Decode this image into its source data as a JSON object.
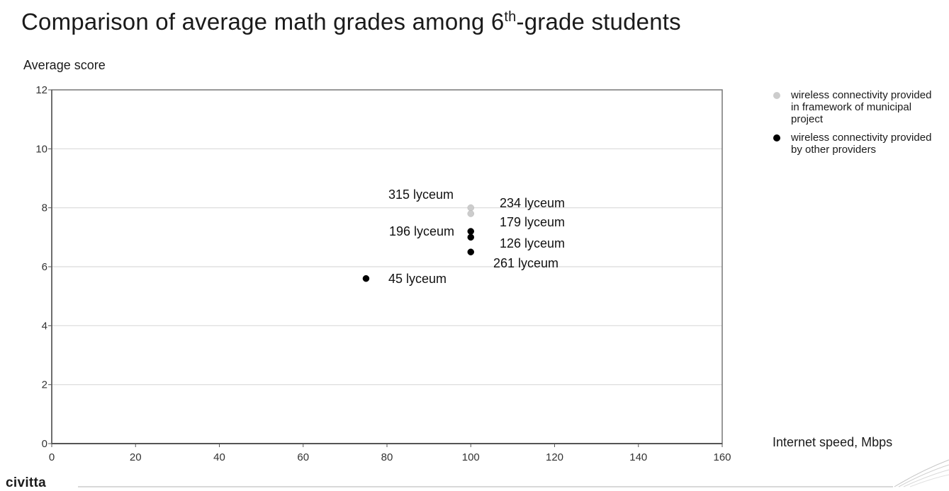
{
  "header": {
    "title_main": "Comparison of average math grades among 6",
    "title_sup": "th",
    "title_rest": "-grade students"
  },
  "brand": "civitta",
  "chart_data": {
    "type": "scatter",
    "title": "Comparison of average math grades among 6th-grade students",
    "xlabel": "Internet speed, Mbps",
    "ylabel": "Average score",
    "xlim": [
      0,
      160
    ],
    "ylim": [
      0,
      12
    ],
    "x_ticks": [
      "0",
      "20",
      "40",
      "60",
      "80",
      "100",
      "120",
      "140",
      "160"
    ],
    "y_ticks": [
      "0",
      "2",
      "4",
      "6",
      "8",
      "10",
      "12"
    ],
    "grid": "horizontal",
    "legend_position": "right",
    "series": [
      {
        "name": "wireless connectivity provided in framework of municipal project",
        "color": "#cccccc",
        "points": [
          {
            "x": 100,
            "y": 8.0
          },
          {
            "x": 100,
            "y": 7.8
          }
        ]
      },
      {
        "name": "wireless connectivity provided by other providers",
        "color": "#000000",
        "points": [
          {
            "x": 100,
            "y": 7.2
          },
          {
            "x": 100,
            "y": 7.0
          },
          {
            "x": 100,
            "y": 6.5
          },
          {
            "x": 75,
            "y": 5.6
          }
        ]
      }
    ],
    "annotations": [
      {
        "text": "315 lyceum"
      },
      {
        "text": "234  lyceum"
      },
      {
        "text": "179  lyceum"
      },
      {
        "text": "196 lyceum"
      },
      {
        "text": "126  lyceum"
      },
      {
        "text": "261  lyceum"
      },
      {
        "text": "45  lyceum"
      }
    ]
  }
}
